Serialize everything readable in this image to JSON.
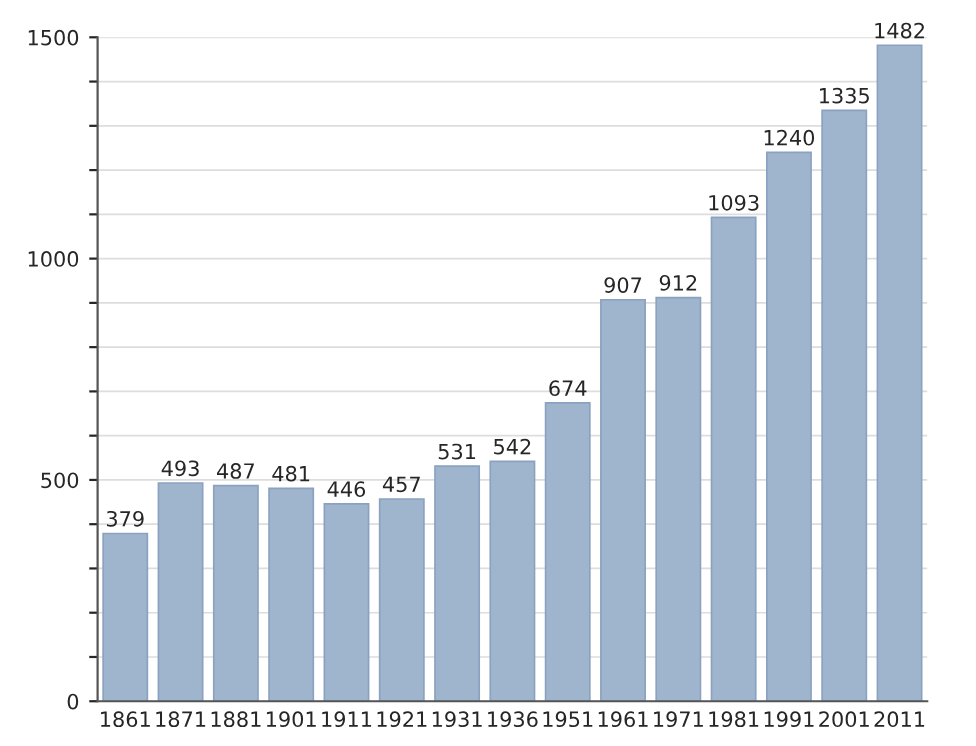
{
  "chart_data": {
    "type": "bar",
    "categories": [
      "1861",
      "1871",
      "1881",
      "1901",
      "1911",
      "1921",
      "1931",
      "1936",
      "1951",
      "1961",
      "1971",
      "1981",
      "1991",
      "2001",
      "2011"
    ],
    "values": [
      379,
      493,
      487,
      481,
      446,
      457,
      531,
      542,
      674,
      907,
      912,
      1093,
      1240,
      1335,
      1482
    ],
    "color": "#9fb5ce",
    "ylim": [
      0,
      1500
    ],
    "yticks": [
      0,
      {
        "value": 100,
        "label": null
      },
      {
        "value": 200,
        "label": null
      },
      {
        "value": 300,
        "label": null
      },
      {
        "value": 400,
        "label": null
      },
      500,
      {
        "value": 600,
        "label": null
      },
      {
        "value": 700,
        "label": null
      },
      {
        "value": 800,
        "label": null
      },
      {
        "value": 900,
        "label": null
      },
      1000,
      {
        "value": 1100,
        "label": null
      },
      {
        "value": 1200,
        "label": null
      },
      {
        "value": 1300,
        "label": null
      },
      {
        "value": 1400,
        "label": null
      },
      1500
    ],
    "grid": "y",
    "data_labels": true
  }
}
